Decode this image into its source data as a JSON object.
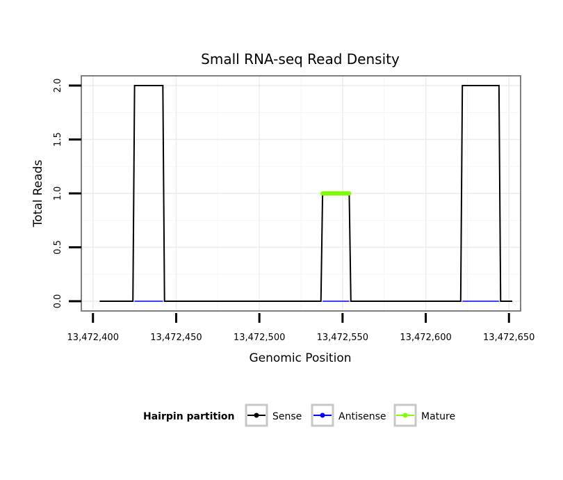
{
  "chart_data": {
    "type": "line",
    "title": "Small RNA-seq Read Density",
    "xlabel": "Genomic Position",
    "ylabel": "Total Reads",
    "xlim": [
      13472393,
      13472657
    ],
    "ylim": [
      -0.09,
      2.09
    ],
    "x_ticks": [
      13472400,
      13472450,
      13472500,
      13472550,
      13472600,
      13472650
    ],
    "x_tick_labels": [
      "13,472,400",
      "13,472,450",
      "13,472,500",
      "13,472,550",
      "13,472,600",
      "13,472,650"
    ],
    "y_ticks": [
      0,
      0.5,
      1,
      1.5,
      2
    ],
    "y_tick_labels": [
      "0.0",
      "0.5",
      "1.0",
      "1.5",
      "2.0"
    ],
    "grid": true,
    "legend": {
      "title": "Hairpin partition",
      "position": "bottom",
      "entries": [
        {
          "label": "Sense",
          "color": "#000000"
        },
        {
          "label": "Antisense",
          "color": "#0000ff"
        },
        {
          "label": "Mature",
          "color": "#7fff00"
        }
      ]
    },
    "series": [
      {
        "name": "Sense",
        "color": "#000000",
        "x": [
          13472404,
          13472424,
          13472425,
          13472442,
          13472443,
          13472537,
          13472538,
          13472554,
          13472555,
          13472621,
          13472622,
          13472644,
          13472645,
          13472652
        ],
        "y": [
          0,
          0,
          2,
          2,
          0,
          0,
          1,
          1,
          0,
          0,
          2,
          2,
          0,
          0
        ]
      },
      {
        "name": "Antisense",
        "color": "#0000ff",
        "segments": [
          {
            "x": [
              13472425,
              13472442
            ],
            "y": [
              0,
              0
            ]
          },
          {
            "x": [
              13472538,
              13472554
            ],
            "y": [
              0,
              0
            ]
          },
          {
            "x": [
              13472622,
              13472644
            ],
            "y": [
              0,
              0
            ]
          }
        ]
      },
      {
        "name": "Mature",
        "color": "#7fff00",
        "x": [
          13472538,
          13472554
        ],
        "y": [
          1,
          1
        ]
      }
    ]
  }
}
